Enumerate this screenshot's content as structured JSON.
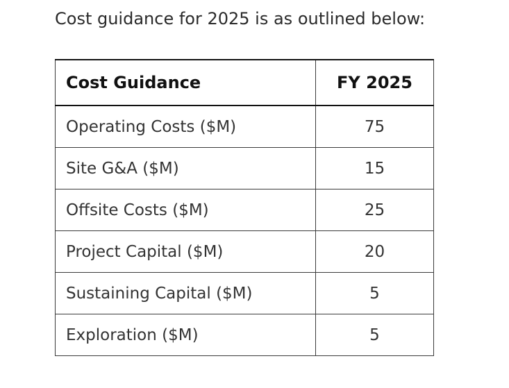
{
  "intro_text": "Cost guidance for 2025 is as outlined below:",
  "table": {
    "headers": [
      "Cost Guidance",
      "FY 2025"
    ],
    "rows": [
      {
        "label": "Operating Costs ($M)",
        "value": "75"
      },
      {
        "label": "Site G&A ($M)",
        "value": "15"
      },
      {
        "label": "Offsite Costs ($M)",
        "value": "25"
      },
      {
        "label": "Project Capital ($M)",
        "value": "20"
      },
      {
        "label": "Sustaining Capital ($M)",
        "value": "5"
      },
      {
        "label": "Exploration ($M)",
        "value": "5"
      }
    ]
  }
}
